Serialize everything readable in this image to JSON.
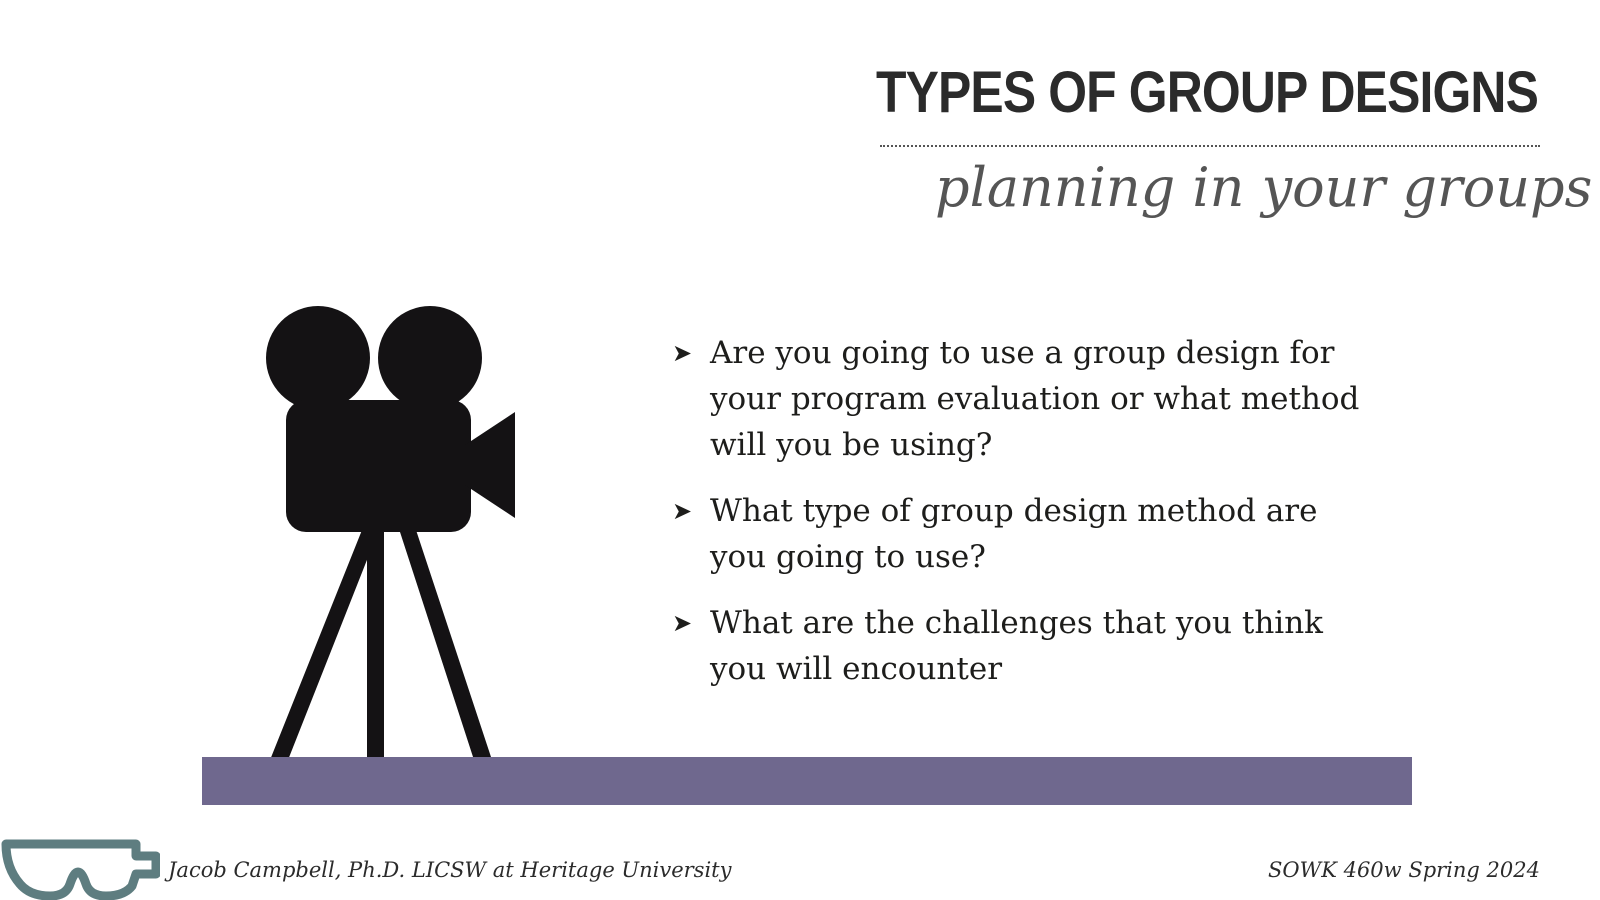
{
  "slide": {
    "title": "TYPES OF GROUP DESIGNS",
    "subtitle": "planning in your groups",
    "bullets": [
      "Are you going to use a group design for your program evaluation or what method will you be using?",
      "What type of group design method are you going to use?",
      "What are the challenges that you think you will encounter"
    ],
    "bullet_glyph": "➤"
  },
  "footer": {
    "left": "Jacob Campbell, Ph.D. LICSW at Heritage University",
    "right": "SOWK 460w Spring 2024"
  },
  "colors": {
    "accent_bar": "#6f688e",
    "goggles": "#5e7d80",
    "camera": "#141214"
  },
  "icons": {
    "illustration": "movie-camera-icon",
    "logo": "goggles-icon"
  }
}
